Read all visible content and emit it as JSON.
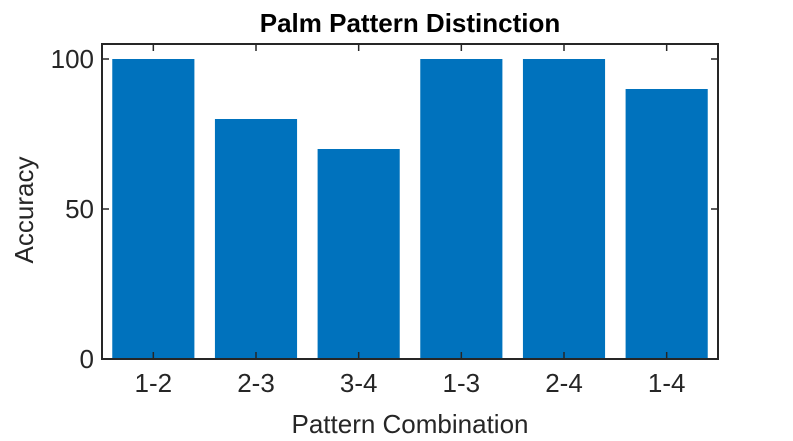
{
  "chart_data": {
    "type": "bar",
    "title": "Palm Pattern Distinction",
    "xlabel": "Pattern Combination",
    "ylabel": "Accuracy",
    "categories": [
      "1-2",
      "2-3",
      "3-4",
      "1-3",
      "2-4",
      "1-4"
    ],
    "values": [
      100,
      80,
      70,
      100,
      100,
      90
    ],
    "ylim": [
      0,
      105
    ],
    "yticks": [
      "0",
      "50",
      "100"
    ],
    "grid": false,
    "legend": "none",
    "colors": {
      "bar": "#0072BD",
      "axis": "#262626"
    }
  }
}
